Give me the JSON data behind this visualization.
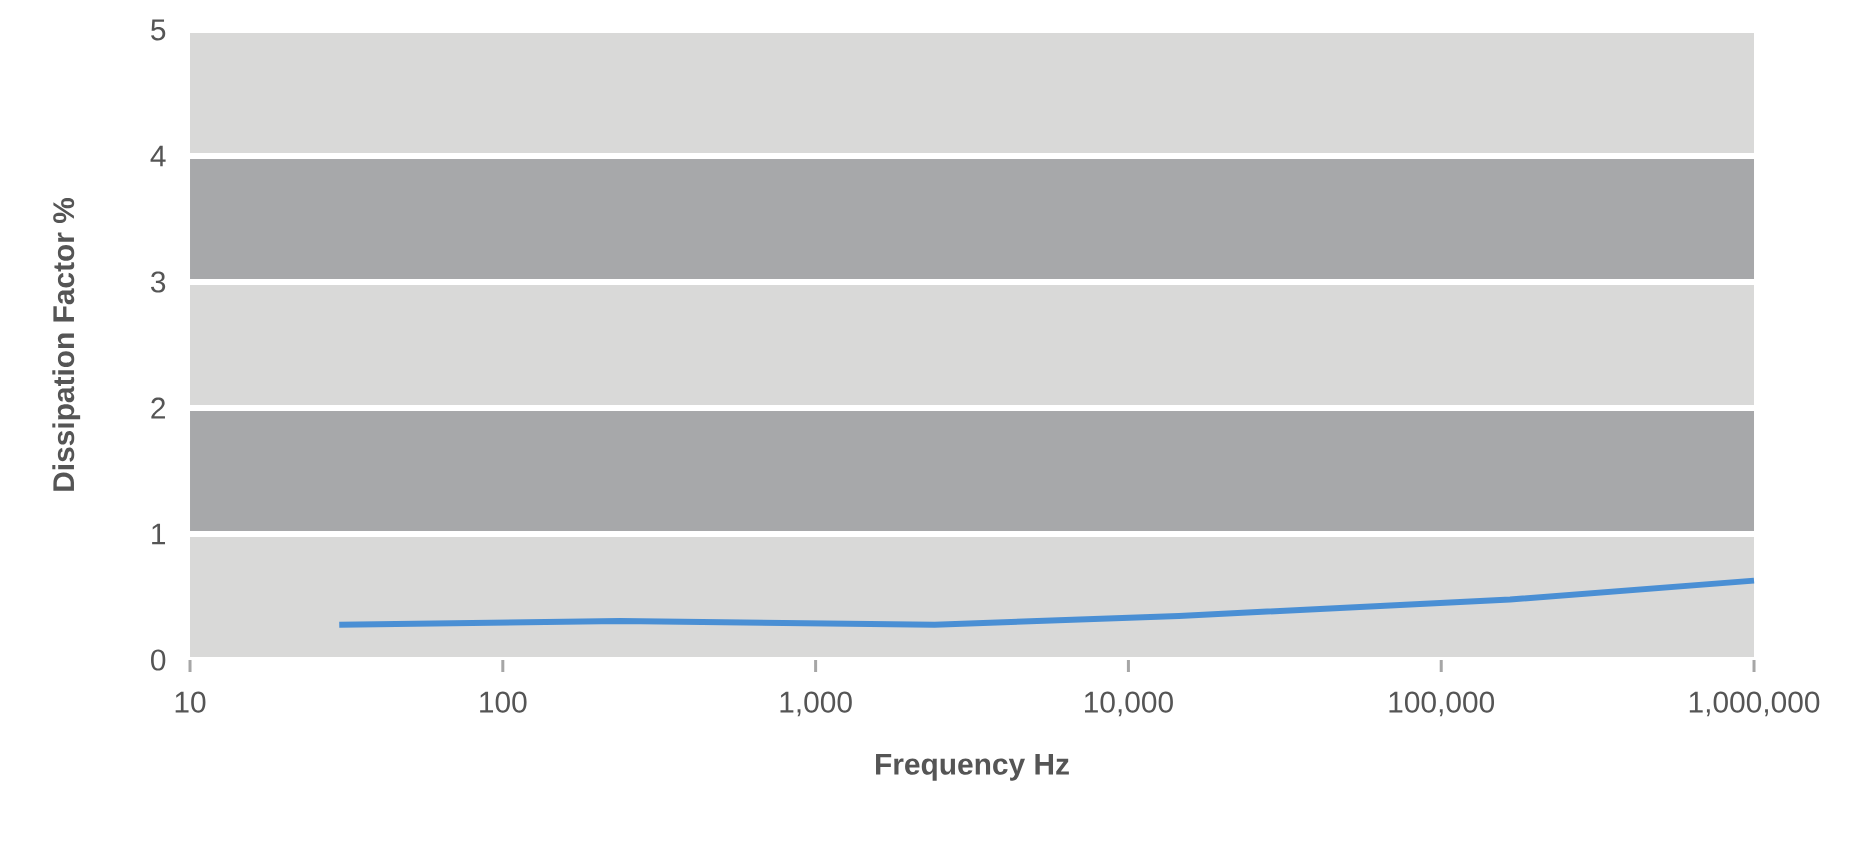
{
  "chart_data": {
    "type": "line",
    "xlabel": "Frequency Hz",
    "ylabel": "Dissipation Factor %",
    "log": "x",
    "xlim": [
      10,
      1000000
    ],
    "ylim": [
      0,
      5
    ],
    "xticks": [
      10,
      100,
      {
        "value": 1000,
        "label": "1,000"
      },
      {
        "value": 10000,
        "label": "10,000"
      },
      {
        "value": 100000,
        "label": "100,000"
      },
      {
        "value": 1000000,
        "label": "1,000,000"
      }
    ],
    "yticks": [
      0,
      1,
      2,
      3,
      4,
      5
    ],
    "marker": "none",
    "line_style": "solid",
    "bands": [
      {
        "axis": "y",
        "from": 0,
        "to": 1,
        "color": "#d9d9d8"
      },
      {
        "axis": "y",
        "from": 1,
        "to": 2,
        "color": "#a7a8aa"
      },
      {
        "axis": "y",
        "from": 2,
        "to": 3,
        "color": "#d9d9d8"
      },
      {
        "axis": "y",
        "from": 3,
        "to": 4,
        "color": "#a7a8aa"
      },
      {
        "axis": "y",
        "from": 4,
        "to": 5,
        "color": "#d9d9d8"
      }
    ],
    "series": [
      {
        "color": "#4a8fd4",
        "x": [
          30,
          237,
          2400,
          14500,
          166000,
          1000000
        ],
        "values": [
          0.28,
          0.31,
          0.28,
          0.35,
          0.48,
          0.63
        ]
      }
    ]
  }
}
